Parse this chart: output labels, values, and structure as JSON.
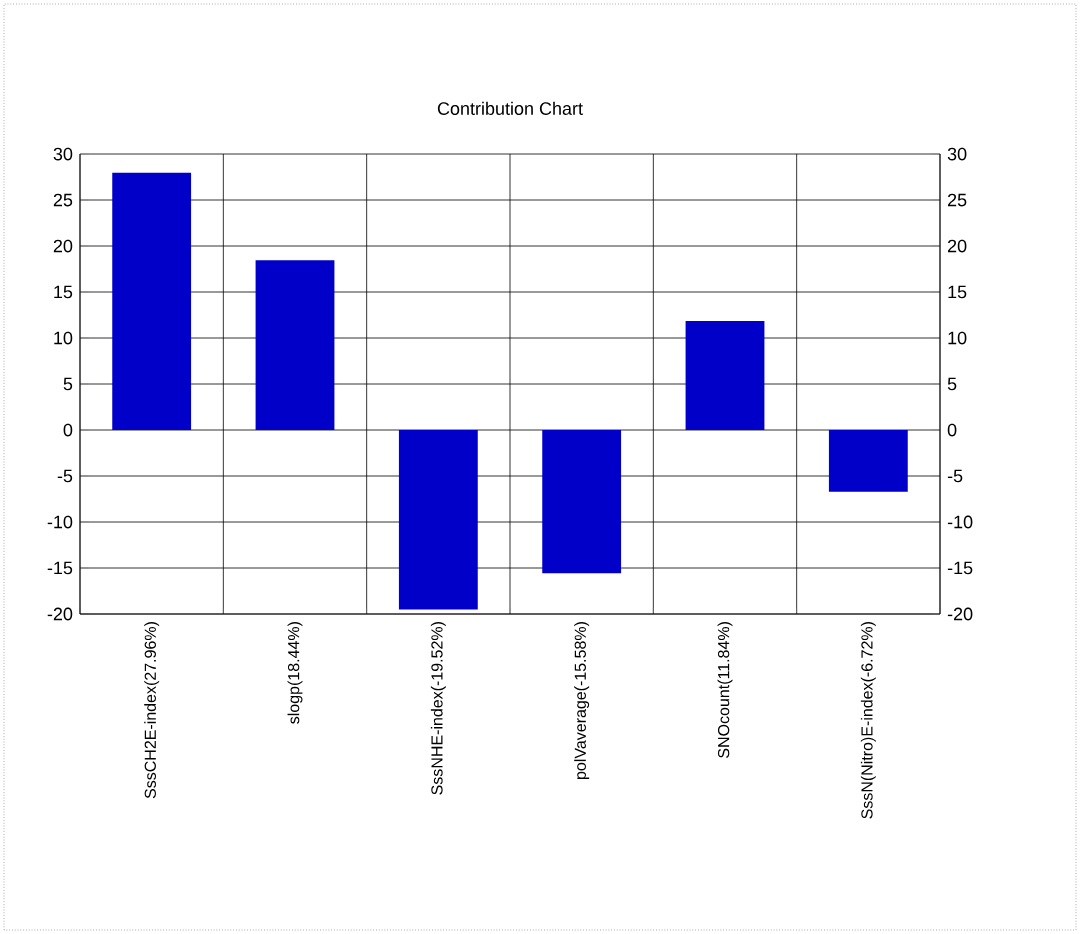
{
  "chart_data": {
    "type": "bar",
    "title": "Contribution Chart",
    "categories": [
      "SssCH2E-index(27.96%)",
      "slogp(18.44%)",
      "SssNHE-index(-19.52%)",
      "polVaverage(-15.58%)",
      "SNOcount(11.84%)",
      "SssN(Nitro)E-index(-6.72%)"
    ],
    "values": [
      27.96,
      18.44,
      -19.52,
      -15.58,
      11.84,
      -6.72
    ],
    "color": "#0000c8",
    "ylim": [
      -20,
      30
    ],
    "yticks": [
      -20,
      -15,
      -10,
      -5,
      0,
      5,
      10,
      15,
      20,
      25,
      30
    ],
    "y2lim": [
      -20,
      30
    ],
    "y2ticks": [
      -20,
      -15,
      -10,
      -5,
      0,
      5,
      10,
      15,
      20,
      25,
      30
    ],
    "grid": true
  }
}
